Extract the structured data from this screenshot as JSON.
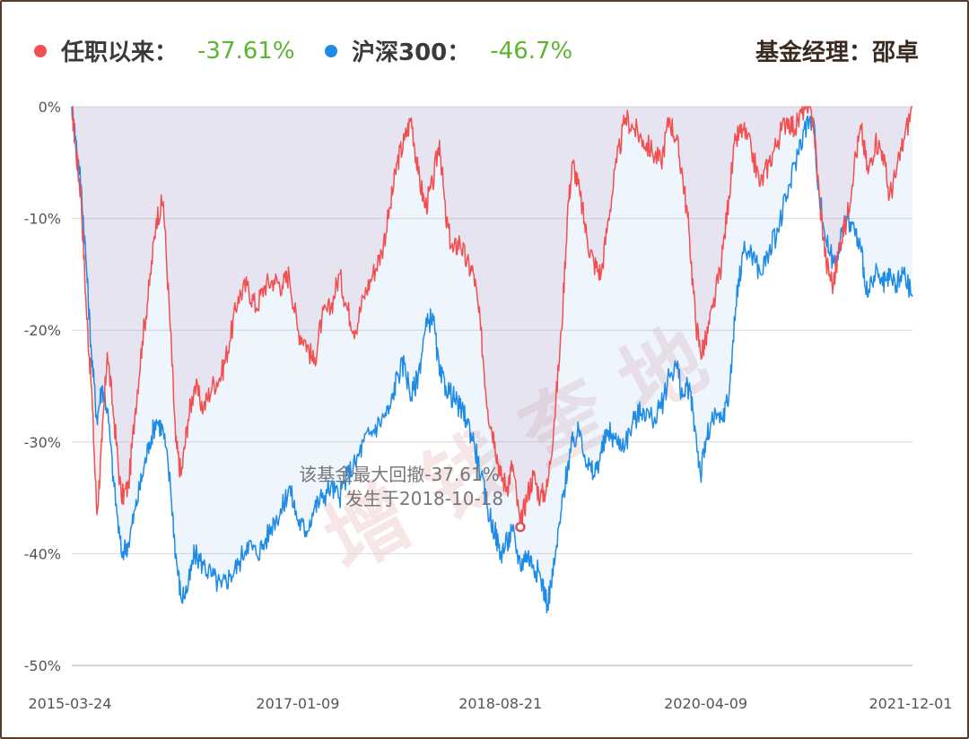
{
  "legend": {
    "fund_label": "任职以来：",
    "fund_value": "-37.61%",
    "index_label": "沪深300：",
    "index_value": "-46.7%",
    "manager": "基金经理：邵卓",
    "fund_color": "#f25050",
    "index_color": "#1e8be6",
    "value_color": "#5cb531"
  },
  "watermark": "增 钱 奎 地",
  "annotation": {
    "line1": "该基金最大回撤-37.61%",
    "line2": "发生于2018-10-18",
    "date": "2018-10-18",
    "value": -37.61
  },
  "chart_data": {
    "type": "line",
    "title": "",
    "xlabel": "",
    "ylabel": "",
    "x_range": [
      "2015-03-24",
      "2021-12-01"
    ],
    "x_ticks": [
      "2015-03-24",
      "2017-01-09",
      "2018-08-21",
      "2020-04-09",
      "2021-12-01"
    ],
    "ylim": [
      -50,
      0
    ],
    "y_ticks": [
      0,
      -10,
      -20,
      -30,
      -40,
      -50
    ],
    "y_tick_labels": [
      "0%",
      "-10%",
      "-20%",
      "-30%",
      "-40%",
      "-50%"
    ],
    "grid": true,
    "series": [
      {
        "name": "任职以来",
        "color": "#f25050",
        "points": [
          [
            "2015-03-24",
            0
          ],
          [
            "2015-04-05",
            -4
          ],
          [
            "2015-04-20",
            -8
          ],
          [
            "2015-05-05",
            -18
          ],
          [
            "2015-05-20",
            -25
          ],
          [
            "2015-06-05",
            -36.5
          ],
          [
            "2015-06-20",
            -30
          ],
          [
            "2015-07-05",
            -22
          ],
          [
            "2015-07-25",
            -28
          ],
          [
            "2015-08-15",
            -35
          ],
          [
            "2015-09-05",
            -34
          ],
          [
            "2015-09-25",
            -27
          ],
          [
            "2015-10-15",
            -21
          ],
          [
            "2015-11-05",
            -16
          ],
          [
            "2015-11-25",
            -10
          ],
          [
            "2015-12-15",
            -8.5
          ],
          [
            "2016-01-05",
            -20
          ],
          [
            "2016-01-20",
            -30
          ],
          [
            "2016-02-05",
            -33
          ],
          [
            "2016-02-25",
            -28
          ],
          [
            "2016-03-15",
            -25
          ],
          [
            "2016-04-10",
            -27
          ],
          [
            "2016-05-05",
            -25
          ],
          [
            "2016-06-01",
            -24
          ],
          [
            "2016-06-25",
            -21
          ],
          [
            "2016-07-20",
            -17
          ],
          [
            "2016-08-15",
            -16
          ],
          [
            "2016-09-10",
            -18
          ],
          [
            "2016-10-05",
            -16
          ],
          [
            "2016-11-01",
            -15.5
          ],
          [
            "2016-11-25",
            -16
          ],
          [
            "2016-12-15",
            -15
          ],
          [
            "2017-01-09",
            -20
          ],
          [
            "2017-02-01",
            -21
          ],
          [
            "2017-02-25",
            -23
          ],
          [
            "2017-03-20",
            -19
          ],
          [
            "2017-04-15",
            -18
          ],
          [
            "2017-05-10",
            -15
          ],
          [
            "2017-06-01",
            -18
          ],
          [
            "2017-06-25",
            -20
          ],
          [
            "2017-07-20",
            -17
          ],
          [
            "2017-08-15",
            -15
          ],
          [
            "2017-09-10",
            -13
          ],
          [
            "2017-10-05",
            -9
          ],
          [
            "2017-10-25",
            -5
          ],
          [
            "2017-11-15",
            -3
          ],
          [
            "2017-12-05",
            -1
          ],
          [
            "2017-12-25",
            -6
          ],
          [
            "2018-01-15",
            -9
          ],
          [
            "2018-02-05",
            -7
          ],
          [
            "2018-02-25",
            -3
          ],
          [
            "2018-03-15",
            -10
          ],
          [
            "2018-04-05",
            -13
          ],
          [
            "2018-04-25",
            -12
          ],
          [
            "2018-05-15",
            -14
          ],
          [
            "2018-06-05",
            -15
          ],
          [
            "2018-06-25",
            -20
          ],
          [
            "2018-07-15",
            -27
          ],
          [
            "2018-08-05",
            -30
          ],
          [
            "2018-08-21",
            -33
          ],
          [
            "2018-09-10",
            -34
          ],
          [
            "2018-09-25",
            -32
          ],
          [
            "2018-10-18",
            -37.61
          ],
          [
            "2018-11-05",
            -35
          ],
          [
            "2018-11-25",
            -33
          ],
          [
            "2018-12-15",
            -35
          ],
          [
            "2019-01-05",
            -34
          ],
          [
            "2019-01-25",
            -28
          ],
          [
            "2019-02-15",
            -20
          ],
          [
            "2019-03-05",
            -9
          ],
          [
            "2019-03-20",
            -5
          ],
          [
            "2019-04-10",
            -8
          ],
          [
            "2019-05-01",
            -12
          ],
          [
            "2019-05-20",
            -14
          ],
          [
            "2019-06-10",
            -15
          ],
          [
            "2019-07-01",
            -10
          ],
          [
            "2019-07-25",
            -5
          ],
          [
            "2019-08-20",
            -1
          ],
          [
            "2019-09-15",
            -2
          ],
          [
            "2019-10-10",
            -3
          ],
          [
            "2019-11-05",
            -4
          ],
          [
            "2019-12-01",
            -5
          ],
          [
            "2019-12-25",
            -1
          ],
          [
            "2020-01-15",
            -3
          ],
          [
            "2020-02-01",
            -6
          ],
          [
            "2020-02-20",
            -11
          ],
          [
            "2020-03-10",
            -19
          ],
          [
            "2020-03-25",
            -22
          ],
          [
            "2020-04-09",
            -21
          ],
          [
            "2020-04-30",
            -18
          ],
          [
            "2020-05-25",
            -14
          ],
          [
            "2020-06-15",
            -8
          ],
          [
            "2020-07-05",
            -3
          ],
          [
            "2020-07-25",
            -2
          ],
          [
            "2020-08-20",
            -4
          ],
          [
            "2020-09-15",
            -7
          ],
          [
            "2020-10-10",
            -5
          ],
          [
            "2020-11-05",
            -3
          ],
          [
            "2020-12-01",
            -1
          ],
          [
            "2020-12-25",
            -2
          ],
          [
            "2021-01-20",
            0
          ],
          [
            "2021-02-15",
            -1
          ],
          [
            "2021-03-05",
            -8
          ],
          [
            "2021-03-25",
            -14
          ],
          [
            "2021-04-15",
            -16
          ],
          [
            "2021-05-05",
            -12
          ],
          [
            "2021-05-25",
            -10
          ],
          [
            "2021-06-15",
            -5
          ],
          [
            "2021-07-05",
            -2
          ],
          [
            "2021-07-25",
            -6
          ],
          [
            "2021-08-15",
            -3
          ],
          [
            "2021-09-05",
            -4
          ],
          [
            "2021-09-25",
            -8
          ],
          [
            "2021-10-15",
            -6
          ],
          [
            "2021-11-05",
            -3
          ],
          [
            "2021-12-01",
            0
          ]
        ]
      },
      {
        "name": "沪深300",
        "color": "#1e8be6",
        "points": [
          [
            "2015-03-24",
            0
          ],
          [
            "2015-04-05",
            -3
          ],
          [
            "2015-04-20",
            -7
          ],
          [
            "2015-05-05",
            -14
          ],
          [
            "2015-05-20",
            -22
          ],
          [
            "2015-06-05",
            -28
          ],
          [
            "2015-06-20",
            -25
          ],
          [
            "2015-07-05",
            -27
          ],
          [
            "2015-07-25",
            -34
          ],
          [
            "2015-08-15",
            -40
          ],
          [
            "2015-09-05",
            -39
          ],
          [
            "2015-09-25",
            -36
          ],
          [
            "2015-10-15",
            -33
          ],
          [
            "2015-11-05",
            -30
          ],
          [
            "2015-11-25",
            -28
          ],
          [
            "2015-12-15",
            -29
          ],
          [
            "2016-01-05",
            -34
          ],
          [
            "2016-01-20",
            -40
          ],
          [
            "2016-02-05",
            -44
          ],
          [
            "2016-02-25",
            -43
          ],
          [
            "2016-03-15",
            -40
          ],
          [
            "2016-04-10",
            -41
          ],
          [
            "2016-05-05",
            -42
          ],
          [
            "2016-06-01",
            -43
          ],
          [
            "2016-06-25",
            -42
          ],
          [
            "2016-07-20",
            -41
          ],
          [
            "2016-08-15",
            -39
          ],
          [
            "2016-09-10",
            -40
          ],
          [
            "2016-10-05",
            -39
          ],
          [
            "2016-11-01",
            -37
          ],
          [
            "2016-11-25",
            -36
          ],
          [
            "2016-12-15",
            -34
          ],
          [
            "2017-01-09",
            -37
          ],
          [
            "2017-02-01",
            -38
          ],
          [
            "2017-02-25",
            -36
          ],
          [
            "2017-03-20",
            -35
          ],
          [
            "2017-04-15",
            -34
          ],
          [
            "2017-05-10",
            -35
          ],
          [
            "2017-06-01",
            -33
          ],
          [
            "2017-06-25",
            -32
          ],
          [
            "2017-07-20",
            -30
          ],
          [
            "2017-08-15",
            -29
          ],
          [
            "2017-09-10",
            -28
          ],
          [
            "2017-10-05",
            -27
          ],
          [
            "2017-10-25",
            -24
          ],
          [
            "2017-11-15",
            -23
          ],
          [
            "2017-12-05",
            -26
          ],
          [
            "2017-12-25",
            -24
          ],
          [
            "2018-01-15",
            -20
          ],
          [
            "2018-02-05",
            -18.5
          ],
          [
            "2018-02-25",
            -24
          ],
          [
            "2018-03-15",
            -25
          ],
          [
            "2018-04-05",
            -26
          ],
          [
            "2018-04-25",
            -27
          ],
          [
            "2018-05-15",
            -28
          ],
          [
            "2018-06-05",
            -30
          ],
          [
            "2018-06-25",
            -33
          ],
          [
            "2018-07-15",
            -36
          ],
          [
            "2018-08-05",
            -38
          ],
          [
            "2018-08-21",
            -40
          ],
          [
            "2018-09-10",
            -39
          ],
          [
            "2018-09-25",
            -38
          ],
          [
            "2018-10-18",
            -41
          ],
          [
            "2018-11-05",
            -40
          ],
          [
            "2018-11-25",
            -41
          ],
          [
            "2018-12-15",
            -42
          ],
          [
            "2019-01-05",
            -44.5
          ],
          [
            "2019-01-25",
            -41
          ],
          [
            "2019-02-15",
            -36
          ],
          [
            "2019-03-05",
            -32
          ],
          [
            "2019-03-20",
            -30
          ],
          [
            "2019-04-10",
            -29
          ],
          [
            "2019-05-01",
            -32
          ],
          [
            "2019-05-20",
            -33
          ],
          [
            "2019-06-10",
            -31
          ],
          [
            "2019-07-01",
            -29
          ],
          [
            "2019-07-25",
            -30
          ],
          [
            "2019-08-20",
            -30
          ],
          [
            "2019-09-15",
            -28
          ],
          [
            "2019-10-10",
            -27
          ],
          [
            "2019-11-05",
            -28
          ],
          [
            "2019-12-01",
            -27
          ],
          [
            "2019-12-25",
            -24
          ],
          [
            "2020-01-15",
            -23
          ],
          [
            "2020-02-01",
            -26
          ],
          [
            "2020-02-20",
            -25
          ],
          [
            "2020-03-10",
            -29
          ],
          [
            "2020-03-25",
            -33
          ],
          [
            "2020-04-09",
            -30
          ],
          [
            "2020-04-30",
            -28
          ],
          [
            "2020-05-25",
            -28
          ],
          [
            "2020-06-15",
            -26
          ],
          [
            "2020-07-05",
            -18
          ],
          [
            "2020-07-25",
            -13
          ],
          [
            "2020-08-20",
            -13
          ],
          [
            "2020-09-15",
            -15
          ],
          [
            "2020-10-10",
            -13
          ],
          [
            "2020-11-05",
            -11
          ],
          [
            "2020-12-01",
            -8
          ],
          [
            "2020-12-25",
            -5
          ],
          [
            "2021-01-20",
            -2
          ],
          [
            "2021-02-15",
            -1
          ],
          [
            "2021-03-05",
            -8
          ],
          [
            "2021-03-25",
            -12
          ],
          [
            "2021-04-15",
            -14
          ],
          [
            "2021-05-05",
            -12
          ],
          [
            "2021-05-25",
            -10
          ],
          [
            "2021-06-15",
            -11
          ],
          [
            "2021-07-05",
            -13
          ],
          [
            "2021-07-25",
            -17
          ],
          [
            "2021-08-15",
            -15
          ],
          [
            "2021-09-05",
            -16
          ],
          [
            "2021-09-25",
            -15.5
          ],
          [
            "2021-10-15",
            -16
          ],
          [
            "2021-11-05",
            -15
          ],
          [
            "2021-12-01",
            -17
          ]
        ]
      }
    ]
  }
}
